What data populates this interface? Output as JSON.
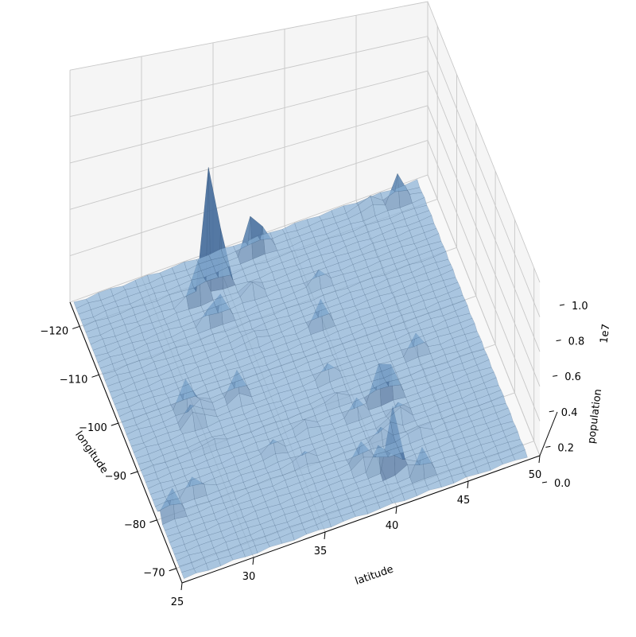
{
  "chart_data": {
    "type": "surface3d",
    "title": "",
    "xlabel": "longitude",
    "ylabel": "latitude",
    "zlabel": "population",
    "z_offset_label": "1e7",
    "xlim": [
      -125,
      -67
    ],
    "ylim": [
      25,
      50
    ],
    "zlim": [
      0,
      10000000
    ],
    "x_ticks": [
      -120,
      -110,
      -100,
      -90,
      -80,
      -70
    ],
    "x_tick_labels": [
      "−120",
      "−110",
      "−100",
      "−90",
      "−80",
      "−70"
    ],
    "y_ticks": [
      25,
      30,
      35,
      40,
      45,
      50
    ],
    "y_tick_labels": [
      "25",
      "30",
      "35",
      "40",
      "45",
      "50"
    ],
    "z_ticks": [
      0,
      2000000,
      4000000,
      6000000,
      8000000,
      10000000
    ],
    "z_tick_labels": [
      "0.0",
      "0.2",
      "0.4",
      "0.6",
      "0.8",
      "1.0"
    ],
    "grid": true,
    "surface_color": "#8db4d8",
    "edge_color": "#2b4a6b",
    "pane_color": "#f2f2f2",
    "peaks": [
      {
        "lon": -118.2,
        "lat": 34.1,
        "population": 9800000
      },
      {
        "lon": -122.4,
        "lat": 37.8,
        "population": 2000000
      },
      {
        "lon": -121.9,
        "lat": 37.3,
        "population": 1700000
      },
      {
        "lon": -117.2,
        "lat": 32.7,
        "population": 2400000
      },
      {
        "lon": -112.1,
        "lat": 33.4,
        "population": 2200000
      },
      {
        "lon": -122.3,
        "lat": 47.6,
        "population": 2000000
      },
      {
        "lon": -122.7,
        "lat": 45.5,
        "population": 1400000
      },
      {
        "lon": -104.9,
        "lat": 39.7,
        "population": 1500000
      },
      {
        "lon": -111.9,
        "lat": 40.8,
        "population": 1000000
      },
      {
        "lon": -115.1,
        "lat": 36.2,
        "population": 1300000
      },
      {
        "lon": -96.8,
        "lat": 32.8,
        "population": 2400000
      },
      {
        "lon": -95.4,
        "lat": 29.8,
        "population": 2900000
      },
      {
        "lon": -98.5,
        "lat": 29.4,
        "population": 1400000
      },
      {
        "lon": -97.7,
        "lat": 30.3,
        "population": 900000
      },
      {
        "lon": -93.3,
        "lat": 45.0,
        "population": 1200000
      },
      {
        "lon": -90.2,
        "lat": 38.6,
        "population": 1000000
      },
      {
        "lon": -87.6,
        "lat": 41.9,
        "population": 5200000
      },
      {
        "lon": -83.0,
        "lat": 42.3,
        "population": 1800000
      },
      {
        "lon": -84.4,
        "lat": 33.7,
        "population": 1100000
      },
      {
        "lon": -80.2,
        "lat": 25.8,
        "population": 2500000
      },
      {
        "lon": -82.5,
        "lat": 28.0,
        "population": 1200000
      },
      {
        "lon": -77.0,
        "lat": 38.9,
        "population": 1600000
      },
      {
        "lon": -75.2,
        "lat": 40.0,
        "population": 1900000
      },
      {
        "lon": -74.0,
        "lat": 40.7,
        "population": 3200000
      },
      {
        "lon": -73.9,
        "lat": 40.8,
        "population": 1500000
      },
      {
        "lon": -71.1,
        "lat": 42.4,
        "population": 1500000
      },
      {
        "lon": -76.6,
        "lat": 39.3,
        "population": 900000
      },
      {
        "lon": -81.7,
        "lat": 41.5,
        "population": 1000000
      },
      {
        "lon": -80.0,
        "lat": 40.4,
        "population": 900000
      },
      {
        "lon": -86.2,
        "lat": 39.8,
        "population": 900000
      },
      {
        "lon": -94.6,
        "lat": 39.1,
        "population": 900000
      },
      {
        "lon": -106.6,
        "lat": 35.1,
        "population": 700000
      },
      {
        "lon": -86.8,
        "lat": 36.2,
        "population": 800000
      },
      {
        "lon": -80.8,
        "lat": 35.2,
        "population": 900000
      },
      {
        "lon": -90.1,
        "lat": 30.0,
        "population": 700000
      },
      {
        "lon": -72.7,
        "lat": 41.8,
        "population": 700000
      },
      {
        "lon": -78.9,
        "lat": 42.9,
        "population": 600000
      }
    ]
  }
}
